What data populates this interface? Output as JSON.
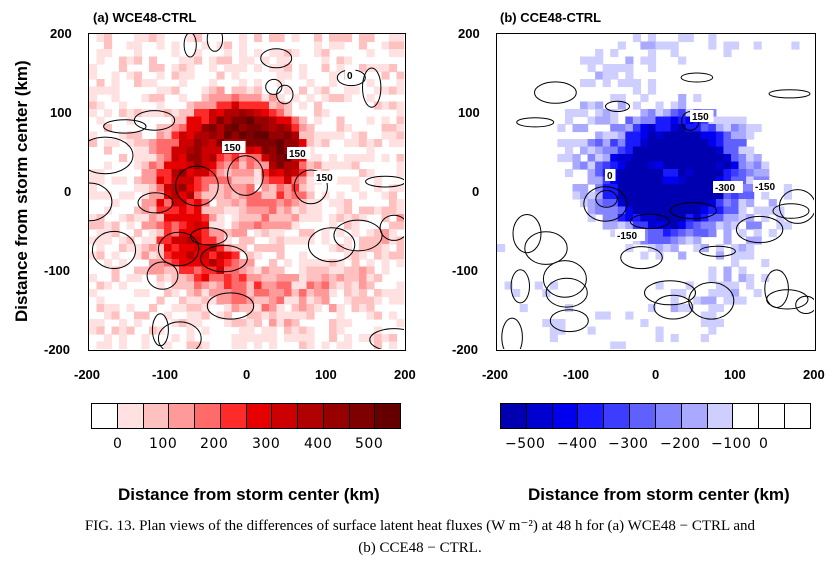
{
  "figure": {
    "y_axis_label": "Distance from storm center (km)",
    "panels": [
      {
        "title": "(a) WCE48-CTRL",
        "x_ticks": [
          "-200",
          "-100",
          "0",
          "100",
          "200"
        ],
        "y_ticks": [
          "200",
          "100",
          "0",
          "-100",
          "-200"
        ],
        "contour_labels": [
          "150",
          "150",
          "150",
          "0"
        ],
        "colorbar_ticks": [
          "0",
          "100",
          "200",
          "300",
          "400",
          "500"
        ],
        "colorbar_colors": [
          "#ffffff",
          "#ffe1e1",
          "#ffc0c0",
          "#ff9a9a",
          "#ff6a6a",
          "#ff2b2b",
          "#e60000",
          "#cc0000",
          "#b00000",
          "#960000",
          "#7e0000",
          "#660000"
        ],
        "xlabel": "Distance from storm center (km)"
      },
      {
        "title": "(b) CCE48-CTRL",
        "x_ticks": [
          "-200",
          "-100",
          "0",
          "100",
          "200"
        ],
        "y_ticks": [
          "200",
          "100",
          "0",
          "-100",
          "-200"
        ],
        "contour_labels": [
          "150",
          "-300",
          "-150",
          "-150",
          "0"
        ],
        "colorbar_ticks": [
          "−500",
          "−400",
          "−300",
          "−200",
          "−100",
          "0"
        ],
        "colorbar_colors": [
          "#0000b0",
          "#0000d0",
          "#0000ee",
          "#1a1aff",
          "#3d3dff",
          "#6060ff",
          "#8585ff",
          "#a9a9ff",
          "#cfcfff",
          "#ffffff",
          "#ffffff",
          "#ffffff"
        ],
        "xlabel": "Distance from storm center (km)"
      }
    ],
    "caption_line1": "FIG. 13. Plan views of the differences of surface latent heat fluxes (W m⁻²) at 48 h for (a) WCE48 − CTRL and",
    "caption_line2": "(b) CCE48 − CTRL."
  },
  "chart_data": [
    {
      "type": "heatmap",
      "title": "(a) WCE48-CTRL",
      "xlabel": "Distance from storm center (km)",
      "ylabel": "Distance from storm center (km)",
      "xlim": [
        -200,
        200
      ],
      "ylim": [
        -200,
        200
      ],
      "colorbar_ticks": [
        0,
        100,
        200,
        300,
        400,
        500
      ],
      "contour_interval": 150,
      "field_features": [
        {
          "label": "spiral band of positive latent heat flux difference",
          "center_km": [
            80,
            20
          ],
          "peak": 550
        },
        {
          "label": "eyewall maximum northwest",
          "center_km": [
            0,
            40
          ],
          "peak": 450
        },
        {
          "label": "southwest band",
          "center_km": [
            -60,
            -60
          ],
          "peak": 300
        }
      ]
    },
    {
      "type": "heatmap",
      "title": "(b) CCE48-CTRL",
      "xlabel": "Distance from storm center (km)",
      "ylabel": "Distance from storm center (km)",
      "xlim": [
        -200,
        200
      ],
      "ylim": [
        -200,
        200
      ],
      "colorbar_ticks": [
        -500,
        -400,
        -300,
        -200,
        -100,
        0
      ],
      "contour_interval": 150,
      "field_features": [
        {
          "label": "ring of negative latent heat flux difference around center",
          "center_km": [
            20,
            20
          ],
          "peak": -550
        },
        {
          "label": "east minimum",
          "center_km": [
            70,
            -20
          ],
          "peak": -300
        },
        {
          "label": "west minimum",
          "center_km": [
            -40,
            -40
          ],
          "peak": -150
        }
      ]
    }
  ]
}
